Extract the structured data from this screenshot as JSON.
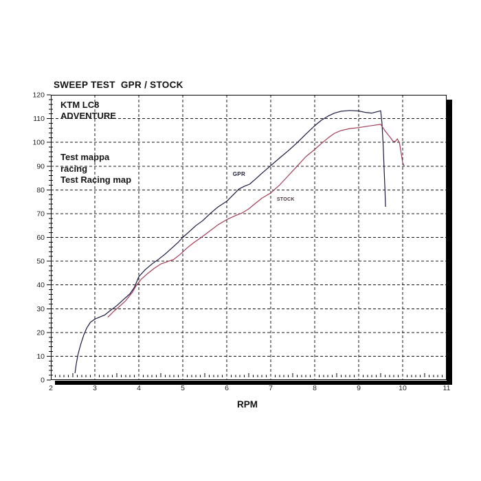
{
  "title": "SWEEP TEST  GPR / STOCK",
  "annotations": {
    "bike_line1": "KTM LC8",
    "bike_line2": "ADVENTURE",
    "note_line1": "Test mappa",
    "note_line2": "racing",
    "note_line3": "Test Racing map"
  },
  "colors": {
    "gpr_curve": "#17173f",
    "stock_curve": "#a23c55",
    "grid": "#141414",
    "axis": "#000000",
    "tick_text": "#1c1c1c"
  },
  "chart_data": {
    "type": "line",
    "title": "SWEEP TEST  GPR / STOCK",
    "xlabel": "RPM",
    "ylabel": "",
    "xlim": [
      2,
      11
    ],
    "ylim": [
      0,
      120
    ],
    "x_ticks": [
      2,
      3,
      4,
      5,
      6,
      7,
      8,
      9,
      10,
      11
    ],
    "y_ticks": [
      0,
      10,
      20,
      30,
      40,
      50,
      60,
      70,
      80,
      90,
      100,
      110,
      120
    ],
    "grid": "dashed",
    "legend_position": "in-plot-text",
    "series": [
      {
        "name": "GPR",
        "color": "#17173f",
        "label_color": "#20203c",
        "label_font_px": 8,
        "label_pos": {
          "x": 6.28,
          "y": 86.8
        },
        "points": [
          [
            2.55,
            3
          ],
          [
            2.58,
            7
          ],
          [
            2.62,
            11
          ],
          [
            2.68,
            15
          ],
          [
            2.75,
            19
          ],
          [
            2.82,
            22
          ],
          [
            2.9,
            24.3
          ],
          [
            3.0,
            25.6
          ],
          [
            3.1,
            26.4
          ],
          [
            3.22,
            27.3
          ],
          [
            3.35,
            29.2
          ],
          [
            3.5,
            31.3
          ],
          [
            3.65,
            33.8
          ],
          [
            3.8,
            36.3
          ],
          [
            3.9,
            39
          ],
          [
            4.0,
            43.5
          ],
          [
            4.15,
            46.5
          ],
          [
            4.3,
            48.8
          ],
          [
            4.45,
            50.8
          ],
          [
            4.6,
            53
          ],
          [
            4.75,
            55.5
          ],
          [
            4.9,
            58
          ],
          [
            5.0,
            60
          ],
          [
            5.15,
            62.5
          ],
          [
            5.3,
            65
          ],
          [
            5.45,
            67
          ],
          [
            5.62,
            70
          ],
          [
            5.8,
            72.8
          ],
          [
            6.0,
            75.2
          ],
          [
            6.15,
            78
          ],
          [
            6.28,
            80.4
          ],
          [
            6.4,
            81.5
          ],
          [
            6.52,
            82.4
          ],
          [
            6.65,
            84.5
          ],
          [
            6.8,
            87
          ],
          [
            7.0,
            90.2
          ],
          [
            7.2,
            93.4
          ],
          [
            7.4,
            96.5
          ],
          [
            7.61,
            100
          ],
          [
            7.8,
            103.5
          ],
          [
            8.0,
            107
          ],
          [
            8.15,
            109.3
          ],
          [
            8.3,
            111
          ],
          [
            8.45,
            112.3
          ],
          [
            8.6,
            113.1
          ],
          [
            8.8,
            113.4
          ],
          [
            9.0,
            113.2
          ],
          [
            9.15,
            112.6
          ],
          [
            9.3,
            112.3
          ],
          [
            9.42,
            112.9
          ],
          [
            9.5,
            113.3
          ],
          [
            9.53,
            108
          ],
          [
            9.56,
            98
          ],
          [
            9.58,
            88
          ],
          [
            9.6,
            79
          ],
          [
            9.61,
            73
          ]
        ]
      },
      {
        "name": "STOCK",
        "color": "#a23c55",
        "label_color": "#443036",
        "label_font_px": 7,
        "label_pos": {
          "x": 7.34,
          "y": 76.3
        },
        "points": [
          [
            3.3,
            26.5
          ],
          [
            3.42,
            28.7
          ],
          [
            3.55,
            30.8
          ],
          [
            3.7,
            33.3
          ],
          [
            3.85,
            36.8
          ],
          [
            3.95,
            40
          ],
          [
            4.05,
            42.3
          ],
          [
            4.2,
            44.8
          ],
          [
            4.35,
            47
          ],
          [
            4.5,
            48.8
          ],
          [
            4.65,
            49.8
          ],
          [
            4.8,
            50.8
          ],
          [
            4.95,
            53
          ],
          [
            5.1,
            55.6
          ],
          [
            5.25,
            57.8
          ],
          [
            5.42,
            60
          ],
          [
            5.6,
            62.5
          ],
          [
            5.8,
            65.3
          ],
          [
            6.0,
            67.5
          ],
          [
            6.2,
            69.2
          ],
          [
            6.35,
            70.3
          ],
          [
            6.5,
            72
          ],
          [
            6.65,
            74.3
          ],
          [
            6.8,
            76.5
          ],
          [
            7.0,
            78.7
          ],
          [
            7.2,
            82
          ],
          [
            7.4,
            86
          ],
          [
            7.6,
            90
          ],
          [
            7.8,
            94
          ],
          [
            8.0,
            97
          ],
          [
            8.15,
            99.5
          ],
          [
            8.3,
            101.8
          ],
          [
            8.45,
            103.8
          ],
          [
            8.6,
            105
          ],
          [
            8.8,
            105.8
          ],
          [
            9.0,
            106.2
          ],
          [
            9.2,
            106.8
          ],
          [
            9.35,
            107.2
          ],
          [
            9.5,
            107.6
          ],
          [
            9.6,
            104.8
          ],
          [
            9.7,
            102.5
          ],
          [
            9.78,
            100.5
          ],
          [
            9.83,
            100.3
          ],
          [
            9.88,
            101.5
          ],
          [
            9.93,
            99.5
          ],
          [
            9.97,
            95
          ],
          [
            10.0,
            91.5
          ],
          [
            10.03,
            90.3
          ]
        ]
      }
    ]
  }
}
